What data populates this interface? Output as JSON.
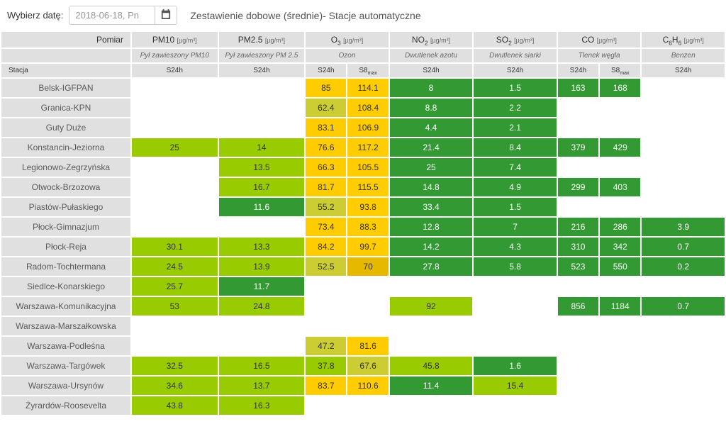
{
  "topbar": {
    "label": "Wybierz datę:",
    "date_value": "2018-06-18, Pn",
    "title": "Zestawienie dobowe (średnie)- Stacje automatyczne"
  },
  "header": {
    "pomiar": "Pomiar",
    "stacja": "Stacja",
    "cols": [
      {
        "name": "PM10",
        "unit": "[µg/m³]",
        "desc": "Pył zawieszony PM10",
        "subs": [
          "S24h"
        ]
      },
      {
        "name": "PM2.5",
        "unit": "[µg/m³]",
        "desc": "Pył zawieszony PM 2.5",
        "subs": [
          "S24h"
        ]
      },
      {
        "name": "O₃",
        "unit": "[µg/m³]",
        "desc": "Ozon",
        "subs": [
          "S24h",
          "S8max"
        ]
      },
      {
        "name": "NO₂",
        "unit": "[µg/m³]",
        "desc": "Dwutlenek azotu",
        "subs": [
          "S24h"
        ]
      },
      {
        "name": "SO₂",
        "unit": "[µg/m³]",
        "desc": "Dwutlenek siarki",
        "subs": [
          "S24h"
        ]
      },
      {
        "name": "CO",
        "unit": "[µg/m³]",
        "desc": "Tlenek węgla",
        "subs": [
          "S24h",
          "S8max"
        ]
      },
      {
        "name": "C₆H₆",
        "unit": "[µg/m³]",
        "desc": "Benzen",
        "subs": [
          "S24h"
        ]
      }
    ]
  },
  "color_map": {
    "lime": "#99cc00",
    "green": "#339933",
    "yellow": "#ffcc00",
    "olive": "#cccc33",
    "amber": "#e6b800",
    "blank": "#ffffff",
    "hdr": "#e0e0e0"
  },
  "rows": [
    {
      "station": "Belsk-IGFPAN",
      "cells": [
        {
          "v": "",
          "c": "blank"
        },
        {
          "v": "",
          "c": "blank"
        },
        {
          "v": "85",
          "c": "yellow"
        },
        {
          "v": "114.1",
          "c": "yellow"
        },
        {
          "v": "8",
          "c": "green"
        },
        {
          "v": "1.5",
          "c": "green"
        },
        {
          "v": "163",
          "c": "green"
        },
        {
          "v": "168",
          "c": "green"
        },
        {
          "v": "",
          "c": "blank"
        }
      ]
    },
    {
      "station": "Granica-KPN",
      "cells": [
        {
          "v": "",
          "c": "blank"
        },
        {
          "v": "",
          "c": "blank"
        },
        {
          "v": "62.4",
          "c": "olive"
        },
        {
          "v": "108.4",
          "c": "yellow"
        },
        {
          "v": "8.8",
          "c": "green"
        },
        {
          "v": "2.2",
          "c": "green"
        },
        {
          "v": "",
          "c": "blank"
        },
        {
          "v": "",
          "c": "blank"
        },
        {
          "v": "",
          "c": "blank"
        }
      ]
    },
    {
      "station": "Guty Duże",
      "cells": [
        {
          "v": "",
          "c": "blank"
        },
        {
          "v": "",
          "c": "blank"
        },
        {
          "v": "83.1",
          "c": "yellow"
        },
        {
          "v": "106.9",
          "c": "yellow"
        },
        {
          "v": "4.4",
          "c": "green"
        },
        {
          "v": "2.1",
          "c": "green"
        },
        {
          "v": "",
          "c": "blank"
        },
        {
          "v": "",
          "c": "blank"
        },
        {
          "v": "",
          "c": "blank"
        }
      ]
    },
    {
      "station": "Konstancin-Jeziorna",
      "cells": [
        {
          "v": "25",
          "c": "lime"
        },
        {
          "v": "14",
          "c": "lime"
        },
        {
          "v": "76.6",
          "c": "yellow"
        },
        {
          "v": "117.2",
          "c": "yellow"
        },
        {
          "v": "21.4",
          "c": "green"
        },
        {
          "v": "8.4",
          "c": "green"
        },
        {
          "v": "379",
          "c": "green"
        },
        {
          "v": "429",
          "c": "green"
        },
        {
          "v": "",
          "c": "blank"
        }
      ]
    },
    {
      "station": "Legionowo-Zegrzyńska",
      "cells": [
        {
          "v": "",
          "c": "blank"
        },
        {
          "v": "13.5",
          "c": "lime"
        },
        {
          "v": "66.3",
          "c": "yellow"
        },
        {
          "v": "105.5",
          "c": "yellow"
        },
        {
          "v": "25",
          "c": "green"
        },
        {
          "v": "7.4",
          "c": "green"
        },
        {
          "v": "",
          "c": "blank"
        },
        {
          "v": "",
          "c": "blank"
        },
        {
          "v": "",
          "c": "blank"
        }
      ]
    },
    {
      "station": "Otwock-Brzozowa",
      "cells": [
        {
          "v": "",
          "c": "blank"
        },
        {
          "v": "16.7",
          "c": "lime"
        },
        {
          "v": "81.7",
          "c": "yellow"
        },
        {
          "v": "115.5",
          "c": "yellow"
        },
        {
          "v": "14.8",
          "c": "green"
        },
        {
          "v": "4.9",
          "c": "green"
        },
        {
          "v": "299",
          "c": "green"
        },
        {
          "v": "403",
          "c": "green"
        },
        {
          "v": "",
          "c": "blank"
        }
      ]
    },
    {
      "station": "Piastów-Pułaskiego",
      "cells": [
        {
          "v": "",
          "c": "blank"
        },
        {
          "v": "11.6",
          "c": "green"
        },
        {
          "v": "55.2",
          "c": "olive"
        },
        {
          "v": "93.8",
          "c": "yellow"
        },
        {
          "v": "33.4",
          "c": "green"
        },
        {
          "v": "1.5",
          "c": "green"
        },
        {
          "v": "",
          "c": "blank"
        },
        {
          "v": "",
          "c": "blank"
        },
        {
          "v": "",
          "c": "blank"
        }
      ]
    },
    {
      "station": "Płock-Gimnazjum",
      "cells": [
        {
          "v": "",
          "c": "blank"
        },
        {
          "v": "",
          "c": "blank"
        },
        {
          "v": "73.4",
          "c": "yellow"
        },
        {
          "v": "88.3",
          "c": "yellow"
        },
        {
          "v": "12.8",
          "c": "green"
        },
        {
          "v": "7",
          "c": "green"
        },
        {
          "v": "216",
          "c": "green"
        },
        {
          "v": "286",
          "c": "green"
        },
        {
          "v": "3.9",
          "c": "green"
        }
      ]
    },
    {
      "station": "Płock-Reja",
      "cells": [
        {
          "v": "30.1",
          "c": "lime"
        },
        {
          "v": "13.3",
          "c": "lime"
        },
        {
          "v": "84.2",
          "c": "yellow"
        },
        {
          "v": "99.7",
          "c": "yellow"
        },
        {
          "v": "14.2",
          "c": "green"
        },
        {
          "v": "4.3",
          "c": "green"
        },
        {
          "v": "310",
          "c": "green"
        },
        {
          "v": "342",
          "c": "green"
        },
        {
          "v": "0.7",
          "c": "green"
        }
      ]
    },
    {
      "station": "Radom-Tochtermana",
      "cells": [
        {
          "v": "24.5",
          "c": "lime"
        },
        {
          "v": "13.9",
          "c": "lime"
        },
        {
          "v": "52.5",
          "c": "olive"
        },
        {
          "v": "70",
          "c": "amber"
        },
        {
          "v": "27.8",
          "c": "green"
        },
        {
          "v": "5.8",
          "c": "green"
        },
        {
          "v": "523",
          "c": "green"
        },
        {
          "v": "550",
          "c": "green"
        },
        {
          "v": "0.2",
          "c": "green"
        }
      ]
    },
    {
      "station": "Siedlce-Konarskiego",
      "cells": [
        {
          "v": "25.7",
          "c": "lime"
        },
        {
          "v": "11.7",
          "c": "green"
        },
        {
          "v": "",
          "c": "blank"
        },
        {
          "v": "",
          "c": "blank"
        },
        {
          "v": "",
          "c": "blank"
        },
        {
          "v": "",
          "c": "blank"
        },
        {
          "v": "",
          "c": "blank"
        },
        {
          "v": "",
          "c": "blank"
        },
        {
          "v": "",
          "c": "blank"
        }
      ]
    },
    {
      "station": "Warszawa-Komunikacyjna",
      "cells": [
        {
          "v": "53",
          "c": "lime"
        },
        {
          "v": "24.8",
          "c": "lime"
        },
        {
          "v": "",
          "c": "blank"
        },
        {
          "v": "",
          "c": "blank"
        },
        {
          "v": "92",
          "c": "lime"
        },
        {
          "v": "",
          "c": "blank"
        },
        {
          "v": "856",
          "c": "green"
        },
        {
          "v": "1184",
          "c": "green"
        },
        {
          "v": "0.7",
          "c": "green"
        }
      ]
    },
    {
      "station": "Warszawa-Marszałkowska",
      "cells": [
        {
          "v": "",
          "c": "blank"
        },
        {
          "v": "",
          "c": "blank"
        },
        {
          "v": "",
          "c": "blank"
        },
        {
          "v": "",
          "c": "blank"
        },
        {
          "v": "",
          "c": "blank"
        },
        {
          "v": "",
          "c": "blank"
        },
        {
          "v": "",
          "c": "blank"
        },
        {
          "v": "",
          "c": "blank"
        },
        {
          "v": "",
          "c": "blank"
        }
      ]
    },
    {
      "station": "Warszawa-Podleśna",
      "cells": [
        {
          "v": "",
          "c": "blank"
        },
        {
          "v": "",
          "c": "blank"
        },
        {
          "v": "47.2",
          "c": "olive"
        },
        {
          "v": "81.6",
          "c": "yellow"
        },
        {
          "v": "",
          "c": "blank"
        },
        {
          "v": "",
          "c": "blank"
        },
        {
          "v": "",
          "c": "blank"
        },
        {
          "v": "",
          "c": "blank"
        },
        {
          "v": "",
          "c": "blank"
        }
      ]
    },
    {
      "station": "Warszawa-Targówek",
      "cells": [
        {
          "v": "32.5",
          "c": "lime"
        },
        {
          "v": "16.5",
          "c": "lime"
        },
        {
          "v": "37.8",
          "c": "lime"
        },
        {
          "v": "67.6",
          "c": "olive"
        },
        {
          "v": "45.8",
          "c": "lime"
        },
        {
          "v": "1.6",
          "c": "green"
        },
        {
          "v": "",
          "c": "blank"
        },
        {
          "v": "",
          "c": "blank"
        },
        {
          "v": "",
          "c": "blank"
        }
      ]
    },
    {
      "station": "Warszawa-Ursynów",
      "cells": [
        {
          "v": "34.6",
          "c": "lime"
        },
        {
          "v": "13.7",
          "c": "lime"
        },
        {
          "v": "83.7",
          "c": "yellow"
        },
        {
          "v": "110.6",
          "c": "yellow"
        },
        {
          "v": "11.4",
          "c": "green"
        },
        {
          "v": "15.4",
          "c": "lime"
        },
        {
          "v": "",
          "c": "blank"
        },
        {
          "v": "",
          "c": "blank"
        },
        {
          "v": "",
          "c": "blank"
        }
      ]
    },
    {
      "station": "Żyrardów-Roosevelta",
      "cells": [
        {
          "v": "43.8",
          "c": "lime"
        },
        {
          "v": "16.3",
          "c": "lime"
        },
        {
          "v": "",
          "c": "blank"
        },
        {
          "v": "",
          "c": "blank"
        },
        {
          "v": "",
          "c": "blank"
        },
        {
          "v": "",
          "c": "blank"
        },
        {
          "v": "",
          "c": "blank"
        },
        {
          "v": "",
          "c": "blank"
        },
        {
          "v": "",
          "c": "blank"
        }
      ]
    }
  ]
}
